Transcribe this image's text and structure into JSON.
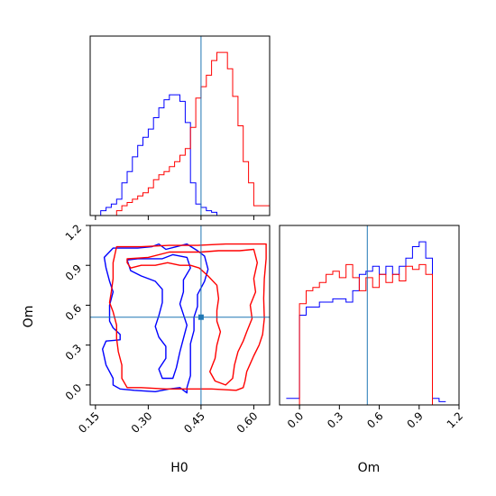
{
  "chart_data": {
    "type": "corner",
    "colors": {
      "series_a": "#ff0000",
      "series_b": "#0000ff",
      "truth": "#1f77b4"
    },
    "parameters": [
      "H0",
      "Om"
    ],
    "truth": {
      "H0": 0.45,
      "Om": 0.51
    },
    "panels": [
      {
        "id": "hist-H0",
        "type": "histogram",
        "xlim": [
          0.135,
          0.645
        ],
        "bins": [
          0.135,
          0.15,
          0.165,
          0.18,
          0.195,
          0.21,
          0.225,
          0.24,
          0.255,
          0.27,
          0.285,
          0.3,
          0.315,
          0.33,
          0.345,
          0.36,
          0.375,
          0.39,
          0.405,
          0.42,
          0.435,
          0.45,
          0.465,
          0.48,
          0.495,
          0.51,
          0.525,
          0.54,
          0.555,
          0.57,
          0.585,
          0.6,
          0.615,
          0.63,
          0.645
        ],
        "series": [
          {
            "color_key": "series_b",
            "counts": [
              0,
              0,
              0.03,
              0.05,
              0.07,
              0.1,
              0.2,
              0.27,
              0.36,
              0.43,
              0.48,
              0.53,
              0.6,
              0.66,
              0.71,
              0.74,
              0.74,
              0.7,
              0.57,
              0.2,
              0.07,
              0.05,
              0.03,
              0.02,
              0,
              0,
              0,
              0,
              0,
              0,
              0,
              0,
              0,
              0
            ]
          },
          {
            "color_key": "series_a",
            "counts": [
              0,
              0,
              0,
              0,
              0,
              0.03,
              0.06,
              0.08,
              0.1,
              0.12,
              0.14,
              0.17,
              0.22,
              0.25,
              0.27,
              0.3,
              0.33,
              0.37,
              0.41,
              0.54,
              0.72,
              0.79,
              0.86,
              0.95,
              1.0,
              1.0,
              0.9,
              0.73,
              0.55,
              0.33,
              0.2,
              0.06,
              0.06,
              0.06
            ]
          }
        ]
      },
      {
        "id": "hist-Om",
        "type": "histogram",
        "xlim": [
          -0.15,
          1.2
        ],
        "xticks": [
          "0.0",
          "0.3",
          "0.6",
          "0.9",
          "1.2"
        ],
        "xtick_values": [
          0.0,
          0.3,
          0.6,
          0.9,
          1.2
        ],
        "xlabel": "Om",
        "bins": [
          -0.1,
          -0.05,
          0,
          0.05,
          0.1,
          0.15,
          0.2,
          0.25,
          0.3,
          0.35,
          0.4,
          0.45,
          0.5,
          0.55,
          0.6,
          0.65,
          0.7,
          0.75,
          0.8,
          0.85,
          0.9,
          0.95,
          1.0,
          1.05,
          1.1
        ],
        "series": [
          {
            "color_key": "series_b",
            "counts": [
              0.04,
              0.04,
              0.55,
              0.6,
              0.6,
              0.63,
              0.63,
              0.65,
              0.65,
              0.63,
              0.7,
              0.8,
              0.82,
              0.85,
              0.8,
              0.85,
              0.8,
              0.85,
              0.9,
              0.97,
              1.0,
              0.9,
              0.04,
              0.02
            ]
          },
          {
            "color_key": "series_a",
            "counts": [
              0,
              0,
              0.62,
              0.7,
              0.72,
              0.75,
              0.8,
              0.82,
              0.78,
              0.86,
              0.78,
              0.7,
              0.78,
              0.72,
              0.8,
              0.75,
              0.8,
              0.76,
              0.85,
              0.83,
              0.86,
              0.8,
              0,
              0
            ]
          }
        ]
      },
      {
        "id": "contour-H0-Om",
        "type": "contour",
        "xlim": [
          0.135,
          0.645
        ],
        "ylim": [
          -0.15,
          1.2
        ],
        "xticks": [
          "0.15",
          "0.30",
          "0.45",
          "0.60"
        ],
        "xtick_values": [
          0.15,
          0.3,
          0.45,
          0.6
        ],
        "yticks": [
          "0.0",
          "0.3",
          "0.6",
          "0.9",
          "1.2"
        ],
        "ytick_values": [
          0.0,
          0.3,
          0.6,
          0.9,
          1.2
        ],
        "xlabel": "H0",
        "ylabel": "Om",
        "contours": [
          {
            "color_key": "series_b",
            "points": [
              [
                0.2,
                1.03
              ],
              [
                0.22,
                1.03
              ],
              [
                0.27,
                1.03
              ],
              [
                0.31,
                1.04
              ],
              [
                0.33,
                1.06
              ],
              [
                0.35,
                1.02
              ],
              [
                0.38,
                1.04
              ],
              [
                0.41,
                1.06
              ],
              [
                0.44,
                1.01
              ],
              [
                0.46,
                0.97
              ],
              [
                0.47,
                0.87
              ],
              [
                0.46,
                0.78
              ],
              [
                0.44,
                0.68
              ],
              [
                0.44,
                0.59
              ],
              [
                0.43,
                0.51
              ],
              [
                0.43,
                0.41
              ],
              [
                0.42,
                0.31
              ],
              [
                0.42,
                0.18
              ],
              [
                0.42,
                0.07
              ],
              [
                0.41,
                -0.02
              ],
              [
                0.41,
                -0.06
              ],
              [
                0.39,
                -0.02
              ],
              [
                0.36,
                -0.03
              ],
              [
                0.32,
                -0.05
              ],
              [
                0.26,
                -0.04
              ],
              [
                0.22,
                -0.03
              ],
              [
                0.2,
                0.0
              ],
              [
                0.2,
                0.05
              ],
              [
                0.18,
                0.15
              ],
              [
                0.17,
                0.27
              ],
              [
                0.18,
                0.33
              ],
              [
                0.22,
                0.34
              ],
              [
                0.22,
                0.38
              ],
              [
                0.2,
                0.43
              ],
              [
                0.19,
                0.48
              ],
              [
                0.19,
                0.6
              ],
              [
                0.2,
                0.7
              ],
              [
                0.19,
                0.78
              ],
              [
                0.18,
                0.88
              ],
              [
                0.175,
                0.96
              ],
              [
                0.2,
                1.03
              ]
            ]
          },
          {
            "color_key": "series_b",
            "points": [
              [
                0.24,
                0.94
              ],
              [
                0.27,
                0.95
              ],
              [
                0.31,
                0.95
              ],
              [
                0.34,
                0.95
              ],
              [
                0.37,
                0.98
              ],
              [
                0.41,
                0.96
              ],
              [
                0.42,
                0.88
              ],
              [
                0.4,
                0.79
              ],
              [
                0.4,
                0.7
              ],
              [
                0.39,
                0.61
              ],
              [
                0.4,
                0.53
              ],
              [
                0.41,
                0.45
              ],
              [
                0.4,
                0.35
              ],
              [
                0.39,
                0.25
              ],
              [
                0.38,
                0.13
              ],
              [
                0.37,
                0.05
              ],
              [
                0.34,
                0.05
              ],
              [
                0.33,
                0.12
              ],
              [
                0.35,
                0.2
              ],
              [
                0.35,
                0.29
              ],
              [
                0.33,
                0.36
              ],
              [
                0.32,
                0.44
              ],
              [
                0.33,
                0.52
              ],
              [
                0.34,
                0.62
              ],
              [
                0.34,
                0.72
              ],
              [
                0.32,
                0.78
              ],
              [
                0.28,
                0.82
              ],
              [
                0.25,
                0.86
              ],
              [
                0.24,
                0.94
              ]
            ]
          },
          {
            "color_key": "series_a",
            "points": [
              [
                0.21,
                1.04
              ],
              [
                0.28,
                1.04
              ],
              [
                0.36,
                1.05
              ],
              [
                0.44,
                1.05
              ],
              [
                0.52,
                1.06
              ],
              [
                0.6,
                1.06
              ],
              [
                0.635,
                1.06
              ],
              [
                0.635,
                0.95
              ],
              [
                0.63,
                0.8
              ],
              [
                0.628,
                0.65
              ],
              [
                0.63,
                0.5
              ],
              [
                0.625,
                0.38
              ],
              [
                0.615,
                0.3
              ],
              [
                0.6,
                0.22
              ],
              [
                0.59,
                0.16
              ],
              [
                0.58,
                0.1
              ],
              [
                0.575,
                0.03
              ],
              [
                0.57,
                -0.02
              ],
              [
                0.55,
                -0.04
              ],
              [
                0.48,
                -0.03
              ],
              [
                0.42,
                -0.03
              ],
              [
                0.35,
                -0.03
              ],
              [
                0.28,
                -0.02
              ],
              [
                0.24,
                -0.02
              ],
              [
                0.225,
                0.05
              ],
              [
                0.225,
                0.15
              ],
              [
                0.215,
                0.25
              ],
              [
                0.21,
                0.35
              ],
              [
                0.21,
                0.45
              ],
              [
                0.2,
                0.55
              ],
              [
                0.19,
                0.62
              ],
              [
                0.195,
                0.7
              ],
              [
                0.2,
                0.8
              ],
              [
                0.2,
                0.92
              ],
              [
                0.21,
                1.04
              ]
            ]
          },
          {
            "color_key": "series_a",
            "points": [
              [
                0.24,
                0.95
              ],
              [
                0.3,
                0.96
              ],
              [
                0.36,
                1.0
              ],
              [
                0.41,
                1.0
              ],
              [
                0.45,
                1.0
              ],
              [
                0.5,
                1.01
              ],
              [
                0.56,
                1.01
              ],
              [
                0.6,
                1.02
              ],
              [
                0.61,
                0.92
              ],
              [
                0.6,
                0.8
              ],
              [
                0.605,
                0.7
              ],
              [
                0.59,
                0.6
              ],
              [
                0.595,
                0.5
              ],
              [
                0.58,
                0.4
              ],
              [
                0.57,
                0.33
              ],
              [
                0.555,
                0.25
              ],
              [
                0.545,
                0.15
              ],
              [
                0.54,
                0.05
              ],
              [
                0.52,
                0.0
              ],
              [
                0.49,
                0.03
              ],
              [
                0.475,
                0.1
              ],
              [
                0.49,
                0.2
              ],
              [
                0.495,
                0.3
              ],
              [
                0.505,
                0.4
              ],
              [
                0.495,
                0.48
              ],
              [
                0.495,
                0.56
              ],
              [
                0.5,
                0.65
              ],
              [
                0.495,
                0.75
              ],
              [
                0.47,
                0.82
              ],
              [
                0.445,
                0.88
              ],
              [
                0.42,
                0.9
              ],
              [
                0.39,
                0.9
              ],
              [
                0.355,
                0.92
              ],
              [
                0.32,
                0.9
              ],
              [
                0.28,
                0.9
              ],
              [
                0.25,
                0.88
              ],
              [
                0.24,
                0.92
              ],
              [
                0.24,
                0.95
              ]
            ]
          }
        ]
      }
    ]
  }
}
